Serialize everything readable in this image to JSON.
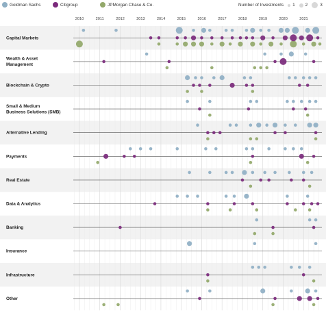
{
  "legend": {
    "series": [
      {
        "name": "Goldman Sachs",
        "color": "#8FAFC4"
      },
      {
        "name": "Citigroup",
        "color": "#7B2A7C"
      },
      {
        "name": "JPMorgan Chase & Co.",
        "color": "#93A86A"
      }
    ],
    "size_title": "Number of Investments",
    "size_values": [
      "1",
      "2",
      "3"
    ]
  },
  "chart_data": {
    "type": "scatter",
    "x_ticks": [
      "2010",
      "2011",
      "2012",
      "2013",
      "2014",
      "2015",
      "2016",
      "2017",
      "2018",
      "2019",
      "2020",
      "2021"
    ],
    "xlim": [
      2009.7,
      2021.9
    ],
    "grid": true,
    "categories": [
      {
        "label": [
          "Capital Markets"
        ],
        "points": {
          "gs": [
            [
              2010.2,
              1
            ],
            [
              2011.8,
              1
            ],
            [
              2014.9,
              3
            ],
            [
              2015.6,
              1
            ],
            [
              2016.1,
              2
            ],
            [
              2016.4,
              1
            ],
            [
              2017.2,
              1
            ],
            [
              2017.5,
              1
            ],
            [
              2018.2,
              1
            ],
            [
              2018.5,
              2
            ],
            [
              2018.9,
              1
            ],
            [
              2019.3,
              1
            ],
            [
              2019.9,
              2
            ],
            [
              2020.2,
              2
            ],
            [
              2020.6,
              3
            ],
            [
              2021.2,
              2
            ],
            [
              2021.6,
              3
            ]
          ],
          "citi": [
            [
              2013.5,
              1
            ],
            [
              2013.9,
              1
            ],
            [
              2014.8,
              1
            ],
            [
              2015.2,
              1
            ],
            [
              2015.6,
              2
            ],
            [
              2016.0,
              1
            ],
            [
              2016.5,
              1
            ],
            [
              2017.0,
              1
            ],
            [
              2017.5,
              1
            ],
            [
              2017.9,
              1
            ],
            [
              2018.2,
              1
            ],
            [
              2018.5,
              1
            ],
            [
              2019.0,
              2
            ],
            [
              2019.5,
              1
            ],
            [
              2020.1,
              2
            ],
            [
              2020.5,
              3
            ],
            [
              2020.9,
              2
            ],
            [
              2021.3,
              3
            ],
            [
              2021.7,
              1
            ]
          ],
          "jpm": [
            [
              2010.0,
              3
            ],
            [
              2013.9,
              1
            ],
            [
              2014.8,
              1
            ],
            [
              2015.2,
              2
            ],
            [
              2015.6,
              2
            ],
            [
              2016.0,
              2
            ],
            [
              2016.5,
              1
            ],
            [
              2017.0,
              2
            ],
            [
              2017.4,
              1
            ],
            [
              2017.9,
              2
            ],
            [
              2018.5,
              2
            ],
            [
              2018.9,
              1
            ],
            [
              2019.4,
              2
            ],
            [
              2019.9,
              1
            ],
            [
              2020.5,
              3
            ],
            [
              2021.0,
              1
            ],
            [
              2021.5,
              2
            ],
            [
              2021.8,
              1
            ]
          ]
        }
      },
      {
        "label": [
          "Wealth & Asset",
          "Management"
        ],
        "points": {
          "gs": [
            [
              2013.3,
              1
            ],
            [
              2019.1,
              1
            ],
            [
              2019.9,
              1
            ],
            [
              2020.4,
              2
            ],
            [
              2021.1,
              1
            ]
          ],
          "citi": [
            [
              2011.2,
              1
            ],
            [
              2014.4,
              1
            ],
            [
              2019.6,
              1
            ],
            [
              2020.0,
              3
            ],
            [
              2021.5,
              1
            ]
          ],
          "jpm": [
            [
              2014.3,
              1
            ],
            [
              2016.5,
              1
            ],
            [
              2018.6,
              1
            ],
            [
              2018.9,
              1
            ],
            [
              2019.2,
              1
            ]
          ]
        }
      },
      {
        "label": [
          "Blockchain & Crypto"
        ],
        "points": {
          "gs": [
            [
              2015.3,
              2
            ],
            [
              2015.7,
              1
            ],
            [
              2016.0,
              1
            ],
            [
              2016.6,
              1
            ],
            [
              2017.0,
              2
            ],
            [
              2018.1,
              1
            ],
            [
              2018.4,
              1
            ],
            [
              2020.3,
              1
            ],
            [
              2020.6,
              1
            ],
            [
              2021.0,
              1
            ],
            [
              2021.3,
              1
            ],
            [
              2021.6,
              1
            ]
          ],
          "citi": [
            [
              2015.6,
              1
            ],
            [
              2015.9,
              1
            ],
            [
              2016.4,
              1
            ],
            [
              2017.5,
              2
            ],
            [
              2018.2,
              1
            ],
            [
              2018.5,
              1
            ],
            [
              2020.8,
              1
            ],
            [
              2021.2,
              1
            ]
          ],
          "jpm": [
            [
              2015.3,
              1
            ],
            [
              2016.0,
              1
            ],
            [
              2018.5,
              1
            ]
          ]
        }
      },
      {
        "label": [
          "Small & Medium",
          "Business Solutions (SMB)"
        ],
        "points": {
          "gs": [
            [
              2015.3,
              1
            ],
            [
              2016.4,
              1
            ],
            [
              2018.4,
              1
            ],
            [
              2018.7,
              1
            ],
            [
              2020.2,
              1
            ],
            [
              2020.5,
              1
            ],
            [
              2020.9,
              1
            ],
            [
              2021.3,
              1
            ],
            [
              2021.6,
              1
            ]
          ],
          "citi": [
            [
              2015.9,
              1
            ],
            [
              2018.3,
              1
            ],
            [
              2020.5,
              1
            ],
            [
              2021.1,
              1
            ]
          ],
          "jpm": [
            [
              2016.4,
              1
            ],
            [
              2021.2,
              1
            ]
          ]
        }
      },
      {
        "label": [
          "Alternative Lending"
        ],
        "points": {
          "gs": [
            [
              2015.8,
              1
            ],
            [
              2017.4,
              1
            ],
            [
              2017.7,
              1
            ],
            [
              2018.4,
              1
            ],
            [
              2018.8,
              2
            ],
            [
              2019.2,
              1
            ],
            [
              2019.6,
              2
            ],
            [
              2020.1,
              1
            ],
            [
              2020.6,
              1
            ],
            [
              2021.3,
              2
            ],
            [
              2021.6,
              2
            ]
          ],
          "citi": [
            [
              2016.3,
              1
            ],
            [
              2016.6,
              1
            ],
            [
              2016.9,
              1
            ],
            [
              2019.6,
              1
            ],
            [
              2020.1,
              1
            ],
            [
              2021.6,
              1
            ]
          ],
          "jpm": [
            [
              2016.3,
              1
            ],
            [
              2018.4,
              1
            ],
            [
              2018.7,
              1
            ],
            [
              2021.6,
              1
            ]
          ]
        }
      },
      {
        "label": [
          "Payments"
        ],
        "points": {
          "gs": [
            [
              2012.5,
              1
            ],
            [
              2013.0,
              1
            ],
            [
              2013.5,
              1
            ],
            [
              2014.8,
              1
            ],
            [
              2016.2,
              1
            ],
            [
              2016.7,
              1
            ],
            [
              2018.2,
              1
            ],
            [
              2018.5,
              1
            ],
            [
              2019.3,
              1
            ],
            [
              2020.1,
              1
            ],
            [
              2020.5,
              1
            ],
            [
              2020.9,
              1
            ]
          ],
          "citi": [
            [
              2011.3,
              2
            ],
            [
              2012.2,
              1
            ],
            [
              2012.7,
              1
            ],
            [
              2018.5,
              1
            ],
            [
              2020.9,
              2
            ],
            [
              2021.5,
              1
            ]
          ],
          "jpm": [
            [
              2010.9,
              1
            ],
            [
              2018.4,
              1
            ],
            [
              2021.2,
              1
            ]
          ]
        }
      },
      {
        "label": [
          "Real Estate"
        ],
        "points": {
          "gs": [
            [
              2015.4,
              1
            ],
            [
              2016.4,
              1
            ],
            [
              2017.2,
              1
            ],
            [
              2017.5,
              1
            ],
            [
              2018.1,
              2
            ],
            [
              2018.5,
              1
            ],
            [
              2019.1,
              1
            ],
            [
              2019.6,
              1
            ],
            [
              2020.3,
              1
            ],
            [
              2021.0,
              1
            ],
            [
              2021.4,
              1
            ]
          ],
          "citi": [
            [
              2018.0,
              1
            ],
            [
              2018.9,
              1
            ],
            [
              2019.3,
              1
            ],
            [
              2020.4,
              1
            ],
            [
              2021.0,
              1
            ]
          ],
          "jpm": [
            [
              2018.4,
              1
            ],
            [
              2021.3,
              1
            ]
          ]
        }
      },
      {
        "label": [
          "Data & Analytics"
        ],
        "points": {
          "gs": [
            [
              2014.8,
              1
            ],
            [
              2015.3,
              1
            ],
            [
              2015.8,
              1
            ],
            [
              2017.2,
              1
            ],
            [
              2017.6,
              1
            ],
            [
              2018.2,
              2
            ],
            [
              2020.2,
              1
            ],
            [
              2021.2,
              1
            ]
          ],
          "citi": [
            [
              2013.7,
              1
            ],
            [
              2016.3,
              1
            ],
            [
              2017.6,
              1
            ],
            [
              2018.5,
              1
            ],
            [
              2020.2,
              1
            ],
            [
              2021.0,
              1
            ],
            [
              2021.4,
              1
            ],
            [
              2021.7,
              1
            ]
          ],
          "jpm": [
            [
              2016.3,
              1
            ],
            [
              2017.4,
              1
            ],
            [
              2018.7,
              1
            ],
            [
              2020.6,
              1
            ],
            [
              2021.3,
              1
            ]
          ]
        }
      },
      {
        "label": [
          "Banking"
        ],
        "points": {
          "gs": [
            [
              2018.7,
              1
            ],
            [
              2021.3,
              1
            ],
            [
              2021.6,
              1
            ]
          ],
          "citi": [
            [
              2012.0,
              1
            ],
            [
              2019.5,
              1
            ],
            [
              2021.5,
              1
            ]
          ],
          "jpm": [
            [
              2018.6,
              1
            ],
            [
              2019.5,
              1
            ]
          ]
        }
      },
      {
        "label": [
          "Insurance"
        ],
        "points": {
          "gs": [
            [
              2015.4,
              2
            ],
            [
              2018.6,
              1
            ],
            [
              2021.6,
              1
            ]
          ],
          "citi": [],
          "jpm": []
        }
      },
      {
        "label": [
          "Infrastructure"
        ],
        "points": {
          "gs": [
            [
              2018.5,
              1
            ],
            [
              2018.8,
              1
            ],
            [
              2019.1,
              1
            ],
            [
              2020.4,
              1
            ],
            [
              2020.8,
              1
            ],
            [
              2021.3,
              1
            ]
          ],
          "citi": [
            [
              2016.3,
              1
            ],
            [
              2021.0,
              1
            ]
          ],
          "jpm": [
            [
              2016.3,
              1
            ],
            [
              2021.5,
              1
            ]
          ]
        }
      },
      {
        "label": [
          "Other"
        ],
        "points": {
          "gs": [
            [
              2015.3,
              1
            ],
            [
              2016.4,
              1
            ],
            [
              2019.0,
              2
            ],
            [
              2020.4,
              1
            ],
            [
              2021.2,
              2
            ],
            [
              2021.6,
              1
            ]
          ],
          "citi": [
            [
              2015.9,
              1
            ],
            [
              2019.6,
              1
            ],
            [
              2020.8,
              2
            ],
            [
              2021.3,
              2
            ],
            [
              2021.7,
              1
            ]
          ],
          "jpm": [
            [
              2011.2,
              1
            ],
            [
              2011.9,
              1
            ],
            [
              2019.5,
              1
            ],
            [
              2021.5,
              1
            ]
          ]
        }
      }
    ]
  }
}
